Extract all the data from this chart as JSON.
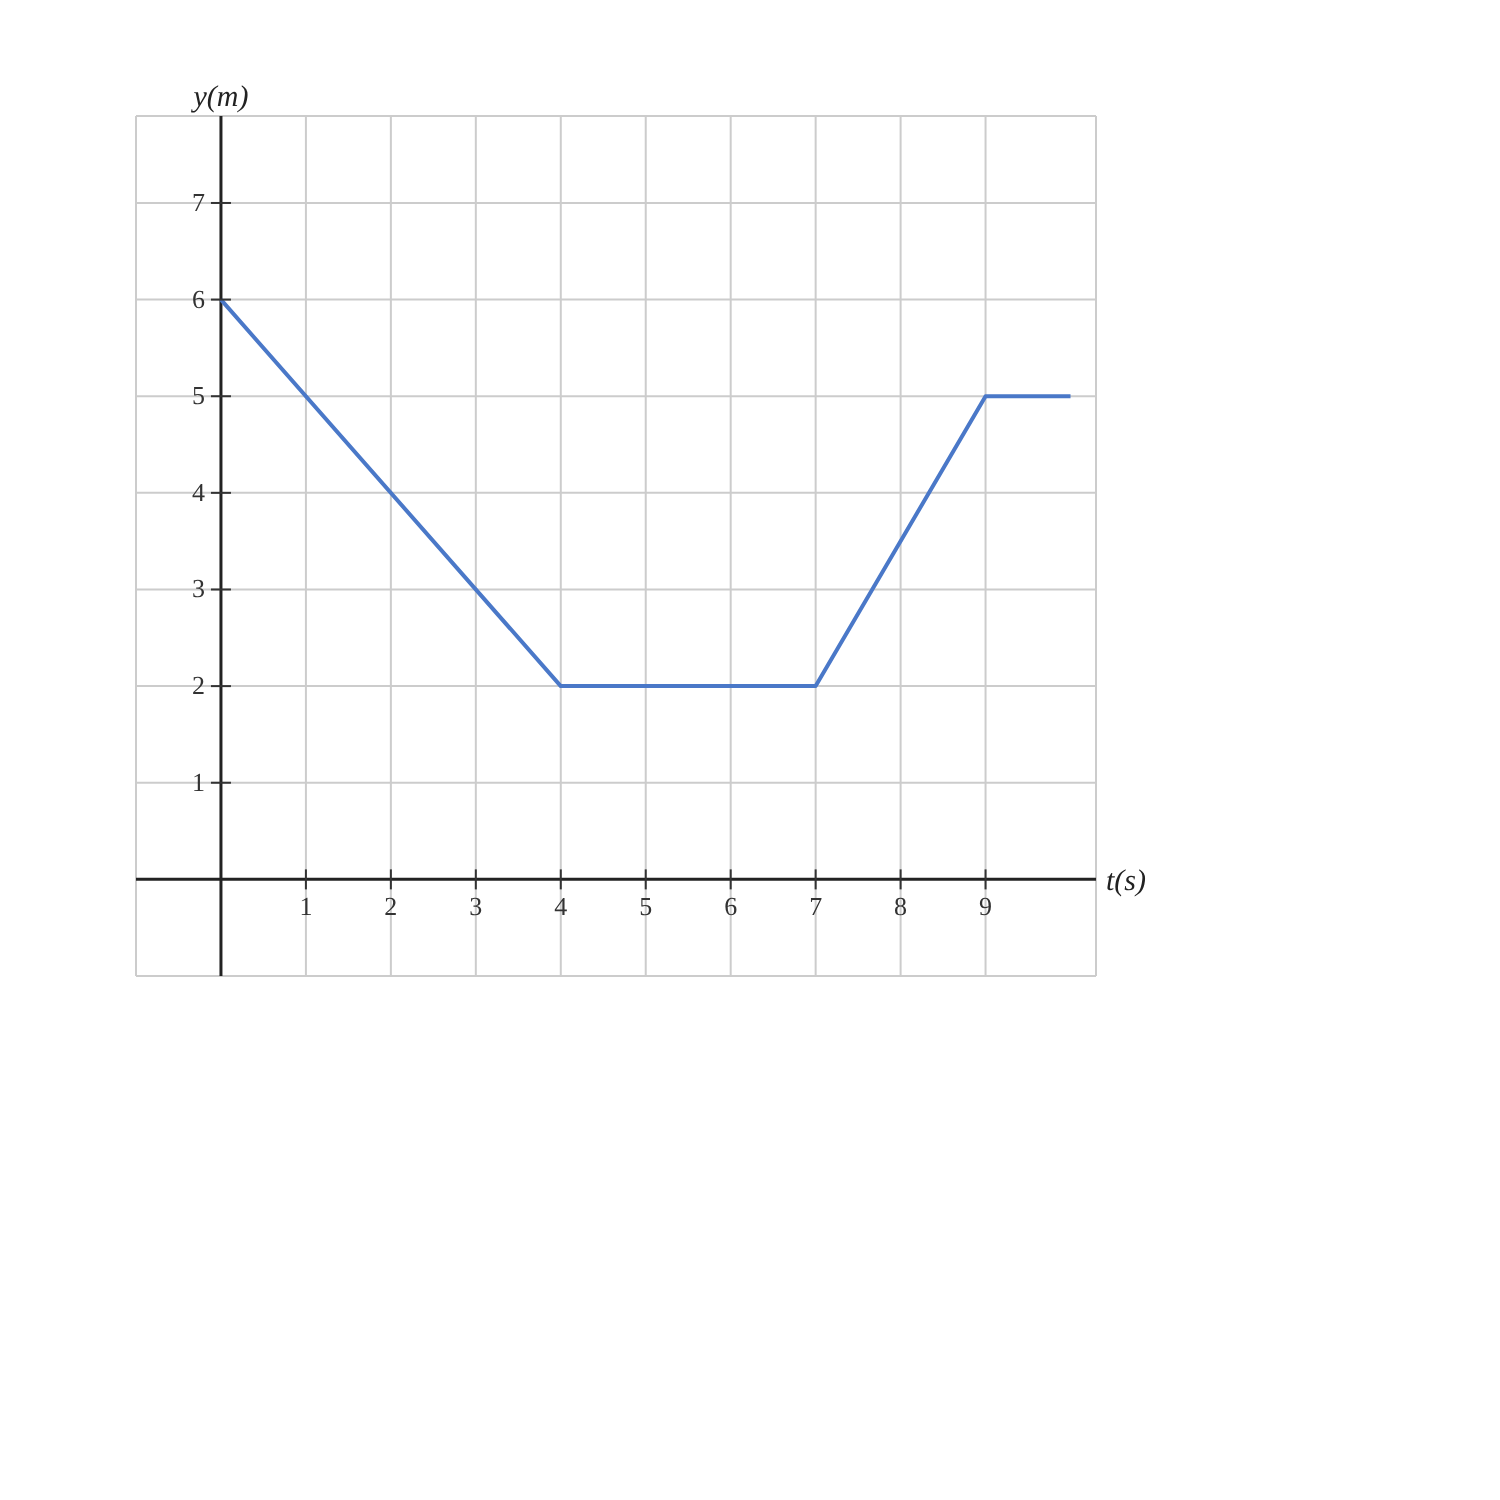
{
  "chart_data": {
    "type": "line",
    "xlabel": "t(s)",
    "ylabel": "y(m)",
    "x": [
      0,
      4,
      7,
      9,
      10
    ],
    "series": [
      {
        "color": "#4a78c8",
        "values": [
          6,
          2,
          2,
          5,
          5
        ]
      }
    ],
    "xlim": [
      -1,
      10.3
    ],
    "ylim": [
      -1,
      7.9
    ],
    "xticks": [
      1,
      2,
      3,
      4,
      5,
      6,
      7,
      8,
      9
    ],
    "yticks": [
      1,
      2,
      3,
      4,
      5,
      6,
      7
    ],
    "grid": true,
    "marker": "none",
    "line_style": "solid"
  }
}
